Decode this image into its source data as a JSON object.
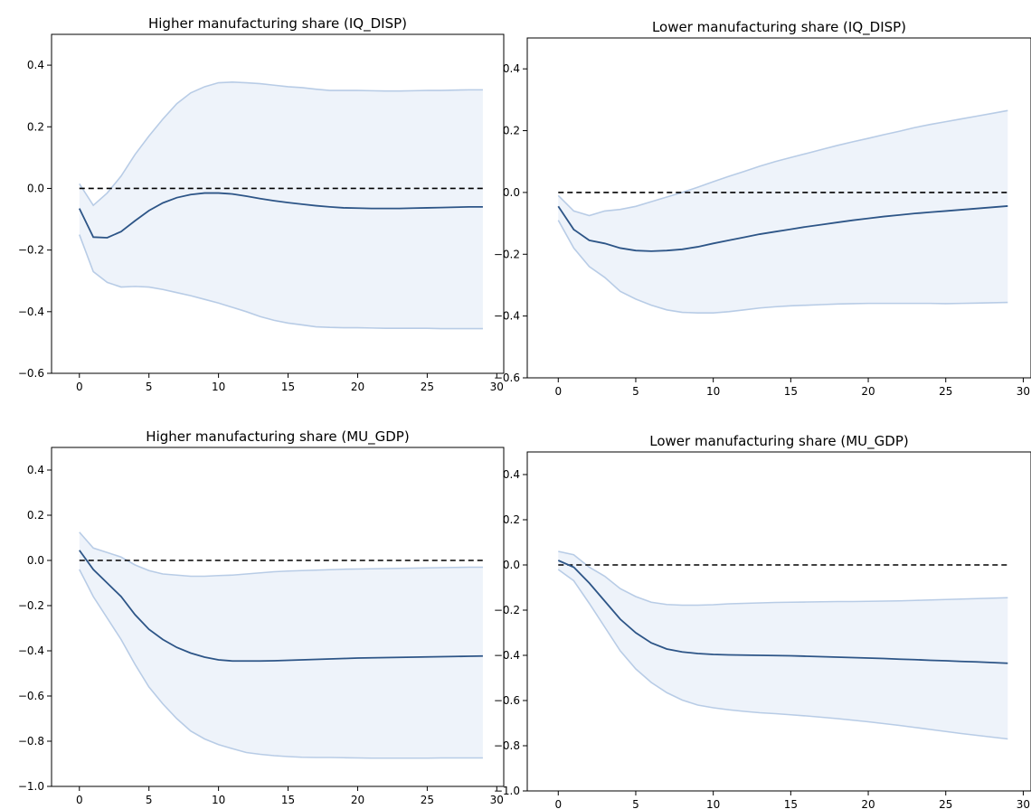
{
  "colors": {
    "band_fill": "#eef3fa",
    "band_edge": "#b8cce6",
    "median_line": "#2d5587",
    "zero_line": "#000000"
  },
  "chart_data": [
    {
      "type": "line",
      "title": "Higher manufacturing share (IQ_DISP)",
      "xlim": [
        -2,
        30.5
      ],
      "ylim": [
        -0.6,
        0.5
      ],
      "x_ticks": [
        0,
        5,
        10,
        15,
        20,
        25,
        30
      ],
      "x_tick_labels": [
        "0",
        "5",
        "10",
        "15",
        "20",
        "25",
        "30"
      ],
      "y_ticks": [
        -0.6,
        -0.4,
        -0.2,
        0.0,
        0.2,
        0.4
      ],
      "y_tick_labels": [
        "−0.6",
        "−0.4",
        "−0.2",
        "0.0",
        "0.2",
        "0.4"
      ],
      "x": [
        0,
        1,
        2,
        3,
        4,
        5,
        6,
        7,
        8,
        9,
        10,
        11,
        12,
        13,
        14,
        15,
        16,
        17,
        18,
        19,
        20,
        21,
        22,
        23,
        24,
        25,
        26,
        27,
        28,
        29
      ],
      "median": [
        -0.065,
        -0.158,
        -0.16,
        -0.14,
        -0.105,
        -0.072,
        -0.047,
        -0.03,
        -0.02,
        -0.015,
        -0.015,
        -0.018,
        -0.025,
        -0.033,
        -0.04,
        -0.046,
        -0.051,
        -0.056,
        -0.06,
        -0.063,
        -0.064,
        -0.065,
        -0.065,
        -0.065,
        -0.064,
        -0.063,
        -0.062,
        -0.061,
        -0.06,
        -0.06
      ],
      "upper": [
        0.015,
        -0.055,
        -0.015,
        0.04,
        0.11,
        0.17,
        0.225,
        0.275,
        0.31,
        0.33,
        0.343,
        0.345,
        0.343,
        0.34,
        0.335,
        0.33,
        0.327,
        0.322,
        0.318,
        0.318,
        0.318,
        0.317,
        0.316,
        0.316,
        0.317,
        0.318,
        0.318,
        0.319,
        0.32,
        0.32
      ],
      "lower": [
        -0.15,
        -0.27,
        -0.305,
        -0.32,
        -0.318,
        -0.32,
        -0.328,
        -0.338,
        -0.348,
        -0.36,
        -0.372,
        -0.386,
        -0.4,
        -0.416,
        -0.428,
        -0.437,
        -0.443,
        -0.449,
        -0.451,
        -0.452,
        -0.452,
        -0.453,
        -0.454,
        -0.454,
        -0.454,
        -0.454,
        -0.455,
        -0.455,
        -0.455,
        -0.455
      ]
    },
    {
      "type": "line",
      "title": "Lower manufacturing share (IQ_DISP)",
      "xlim": [
        -2,
        30.5
      ],
      "ylim": [
        -0.6,
        0.5
      ],
      "x_ticks": [
        0,
        5,
        10,
        15,
        20,
        25,
        30
      ],
      "x_tick_labels": [
        "0",
        "5",
        "10",
        "15",
        "20",
        "25",
        "30"
      ],
      "y_ticks": [
        -0.6,
        -0.4,
        -0.2,
        0.0,
        0.2,
        0.4
      ],
      "y_tick_labels": [
        "−0.6",
        "−0.4",
        "−0.2",
        "0.0",
        "0.2",
        "0.4"
      ],
      "x": [
        0,
        1,
        2,
        3,
        4,
        5,
        6,
        7,
        8,
        9,
        10,
        11,
        12,
        13,
        14,
        15,
        16,
        17,
        18,
        19,
        20,
        21,
        22,
        23,
        24,
        25,
        26,
        27,
        28,
        29
      ],
      "median": [
        -0.045,
        -0.12,
        -0.155,
        -0.165,
        -0.18,
        -0.188,
        -0.19,
        -0.188,
        -0.184,
        -0.176,
        -0.165,
        -0.155,
        -0.145,
        -0.135,
        -0.127,
        -0.119,
        -0.111,
        -0.104,
        -0.097,
        -0.09,
        -0.084,
        -0.078,
        -0.073,
        -0.068,
        -0.064,
        -0.06,
        -0.056,
        -0.052,
        -0.048,
        -0.044
      ],
      "upper": [
        -0.01,
        -0.06,
        -0.075,
        -0.06,
        -0.055,
        -0.045,
        -0.03,
        -0.015,
        0.0,
        0.017,
        0.035,
        0.052,
        0.068,
        0.085,
        0.1,
        0.113,
        0.126,
        0.139,
        0.152,
        0.164,
        0.175,
        0.187,
        0.198,
        0.21,
        0.22,
        0.229,
        0.238,
        0.247,
        0.256,
        0.265
      ],
      "lower": [
        -0.09,
        -0.18,
        -0.24,
        -0.275,
        -0.32,
        -0.345,
        -0.365,
        -0.38,
        -0.388,
        -0.39,
        -0.39,
        -0.386,
        -0.38,
        -0.374,
        -0.37,
        -0.367,
        -0.365,
        -0.363,
        -0.361,
        -0.36,
        -0.359,
        -0.359,
        -0.359,
        -0.359,
        -0.359,
        -0.36,
        -0.359,
        -0.358,
        -0.357,
        -0.356
      ]
    },
    {
      "type": "line",
      "title": "Higher manufacturing share (MU_GDP)",
      "xlim": [
        -2,
        30.5
      ],
      "ylim": [
        -1.0,
        0.5
      ],
      "x_ticks": [
        0,
        5,
        10,
        15,
        20,
        25,
        30
      ],
      "x_tick_labels": [
        "0",
        "5",
        "10",
        "15",
        "20",
        "25",
        "30"
      ],
      "y_ticks": [
        -1.0,
        -0.8,
        -0.6,
        -0.4,
        -0.2,
        0.0,
        0.2,
        0.4
      ],
      "y_tick_labels": [
        "−1.0",
        "−0.8",
        "−0.6",
        "−0.4",
        "−0.2",
        "0.0",
        "0.2",
        "0.4"
      ],
      "x": [
        0,
        1,
        2,
        3,
        4,
        5,
        6,
        7,
        8,
        9,
        10,
        11,
        12,
        13,
        14,
        15,
        16,
        17,
        18,
        19,
        20,
        21,
        22,
        23,
        24,
        25,
        26,
        27,
        28,
        29
      ],
      "median": [
        0.045,
        -0.04,
        -0.1,
        -0.16,
        -0.24,
        -0.305,
        -0.35,
        -0.385,
        -0.41,
        -0.428,
        -0.44,
        -0.445,
        -0.445,
        -0.445,
        -0.444,
        -0.442,
        -0.44,
        -0.438,
        -0.436,
        -0.434,
        -0.432,
        -0.431,
        -0.43,
        -0.429,
        -0.428,
        -0.427,
        -0.426,
        -0.425,
        -0.424,
        -0.423
      ],
      "upper": [
        0.125,
        0.055,
        0.035,
        0.015,
        -0.02,
        -0.045,
        -0.06,
        -0.065,
        -0.07,
        -0.07,
        -0.067,
        -0.065,
        -0.06,
        -0.055,
        -0.05,
        -0.047,
        -0.045,
        -0.043,
        -0.041,
        -0.039,
        -0.038,
        -0.037,
        -0.036,
        -0.035,
        -0.034,
        -0.033,
        -0.032,
        -0.031,
        -0.03,
        -0.03
      ],
      "lower": [
        -0.04,
        -0.16,
        -0.255,
        -0.35,
        -0.46,
        -0.56,
        -0.635,
        -0.7,
        -0.755,
        -0.79,
        -0.815,
        -0.833,
        -0.85,
        -0.858,
        -0.864,
        -0.868,
        -0.871,
        -0.872,
        -0.872,
        -0.873,
        -0.874,
        -0.875,
        -0.875,
        -0.875,
        -0.875,
        -0.875,
        -0.874,
        -0.874,
        -0.874,
        -0.874
      ]
    },
    {
      "type": "line",
      "title": "Lower manufacturing share (MU_GDP)",
      "xlim": [
        -2,
        30.5
      ],
      "ylim": [
        -1.0,
        0.5
      ],
      "x_ticks": [
        0,
        5,
        10,
        15,
        20,
        25,
        30
      ],
      "x_tick_labels": [
        "0",
        "5",
        "10",
        "15",
        "20",
        "25",
        "30"
      ],
      "y_ticks": [
        -1.0,
        -0.8,
        -0.6,
        -0.4,
        -0.2,
        0.0,
        0.2,
        0.4
      ],
      "y_tick_labels": [
        "−1.0",
        "−0.8",
        "−0.6",
        "−0.4",
        "−0.2",
        "0.0",
        "0.2",
        "0.4"
      ],
      "x": [
        0,
        1,
        2,
        3,
        4,
        5,
        6,
        7,
        8,
        9,
        10,
        11,
        12,
        13,
        14,
        15,
        16,
        17,
        18,
        19,
        20,
        21,
        22,
        23,
        24,
        25,
        26,
        27,
        28,
        29
      ],
      "median": [
        0.02,
        -0.01,
        -0.08,
        -0.16,
        -0.24,
        -0.3,
        -0.345,
        -0.372,
        -0.385,
        -0.392,
        -0.396,
        -0.398,
        -0.399,
        -0.4,
        -0.401,
        -0.402,
        -0.404,
        -0.406,
        -0.408,
        -0.41,
        -0.412,
        -0.414,
        -0.417,
        -0.419,
        -0.422,
        -0.424,
        -0.427,
        -0.429,
        -0.432,
        -0.435
      ],
      "upper": [
        0.06,
        0.045,
        -0.01,
        -0.05,
        -0.105,
        -0.14,
        -0.165,
        -0.175,
        -0.178,
        -0.178,
        -0.176,
        -0.172,
        -0.17,
        -0.168,
        -0.166,
        -0.165,
        -0.164,
        -0.163,
        -0.162,
        -0.162,
        -0.161,
        -0.16,
        -0.159,
        -0.157,
        -0.155,
        -0.153,
        -0.151,
        -0.149,
        -0.147,
        -0.145
      ],
      "lower": [
        -0.02,
        -0.07,
        -0.17,
        -0.275,
        -0.38,
        -0.46,
        -0.52,
        -0.565,
        -0.598,
        -0.62,
        -0.632,
        -0.641,
        -0.648,
        -0.654,
        -0.658,
        -0.663,
        -0.668,
        -0.674,
        -0.68,
        -0.687,
        -0.694,
        -0.702,
        -0.71,
        -0.719,
        -0.728,
        -0.737,
        -0.746,
        -0.754,
        -0.762,
        -0.77
      ]
    }
  ]
}
